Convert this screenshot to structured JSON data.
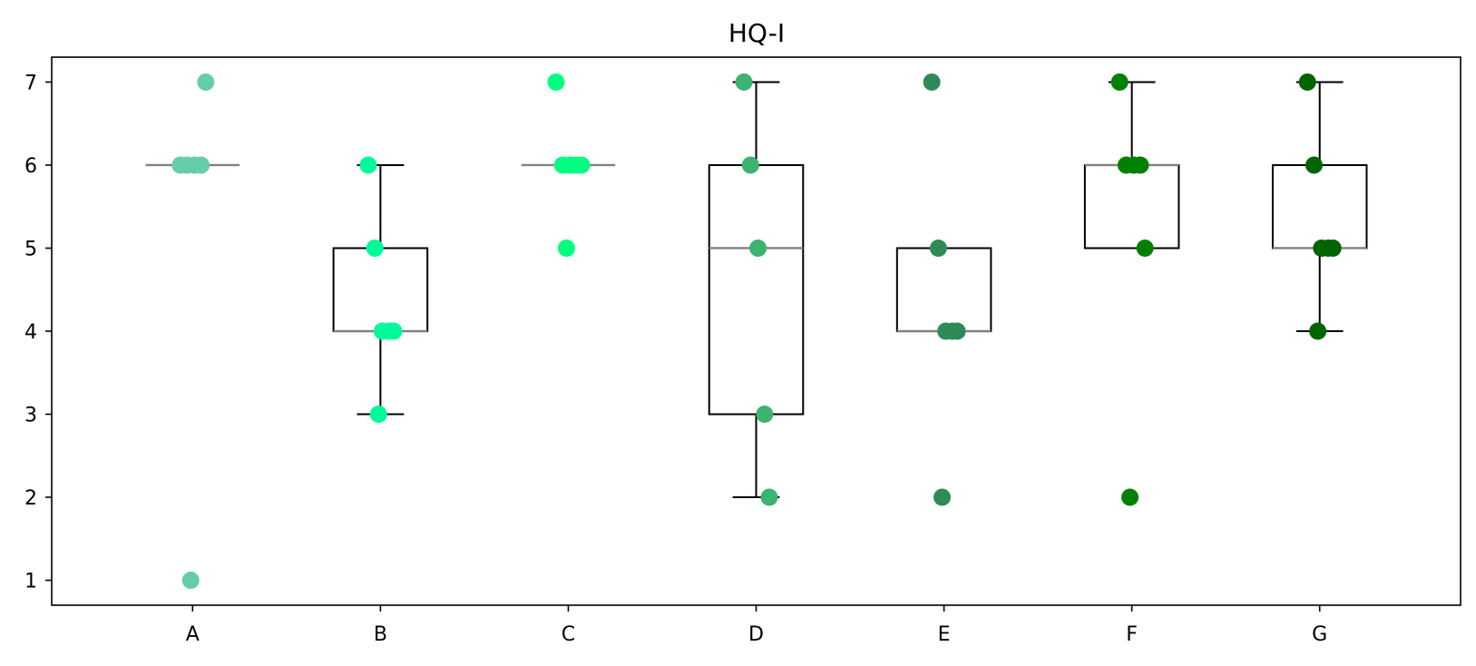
{
  "chart_data": {
    "type": "box",
    "title": "HQ-I",
    "xlabel": "",
    "ylabel": "",
    "categories": [
      "A",
      "B",
      "C",
      "D",
      "E",
      "F",
      "G"
    ],
    "yticks": [
      1,
      2,
      3,
      4,
      5,
      6,
      7
    ],
    "ylim": [
      0.7,
      7.3
    ],
    "grid": false,
    "box_color": "#000000",
    "median_color": "#808080",
    "boxes": [
      {
        "category": "A",
        "q1": 6,
        "median": 6,
        "q3": 6,
        "whisker_low": 6,
        "whisker_high": 6,
        "point_color": "#66cdaa",
        "points": [
          6,
          6,
          6,
          6,
          7,
          1
        ]
      },
      {
        "category": "B",
        "q1": 4,
        "median": 4,
        "q3": 5,
        "whisker_low": 3,
        "whisker_high": 6,
        "point_color": "#00fa9a",
        "points": [
          6,
          5,
          4,
          4,
          4,
          3
        ]
      },
      {
        "category": "C",
        "q1": 6,
        "median": 6,
        "q3": 6,
        "whisker_low": 6,
        "whisker_high": 6,
        "point_color": "#00ff7f",
        "points": [
          7,
          6,
          6,
          6,
          6,
          5
        ]
      },
      {
        "category": "D",
        "q1": 3,
        "median": 5,
        "q3": 6,
        "whisker_low": 2,
        "whisker_high": 7,
        "point_color": "#3cb371",
        "points": [
          7,
          6,
          5,
          3,
          2
        ]
      },
      {
        "category": "E",
        "q1": 4,
        "median": 4,
        "q3": 5,
        "whisker_low": 4,
        "whisker_high": 5,
        "point_color": "#2e8b57",
        "points": [
          7,
          5,
          4,
          4,
          4,
          2
        ]
      },
      {
        "category": "F",
        "q1": 5,
        "median": 6,
        "q3": 6,
        "whisker_low": 5,
        "whisker_high": 7,
        "point_color": "#008000",
        "points": [
          7,
          6,
          6,
          6,
          5,
          2
        ]
      },
      {
        "category": "G",
        "q1": 5,
        "median": 5,
        "q3": 6,
        "whisker_low": 4,
        "whisker_high": 7,
        "point_color": "#006400",
        "points": [
          7,
          6,
          5,
          5,
          5,
          4
        ]
      }
    ]
  }
}
